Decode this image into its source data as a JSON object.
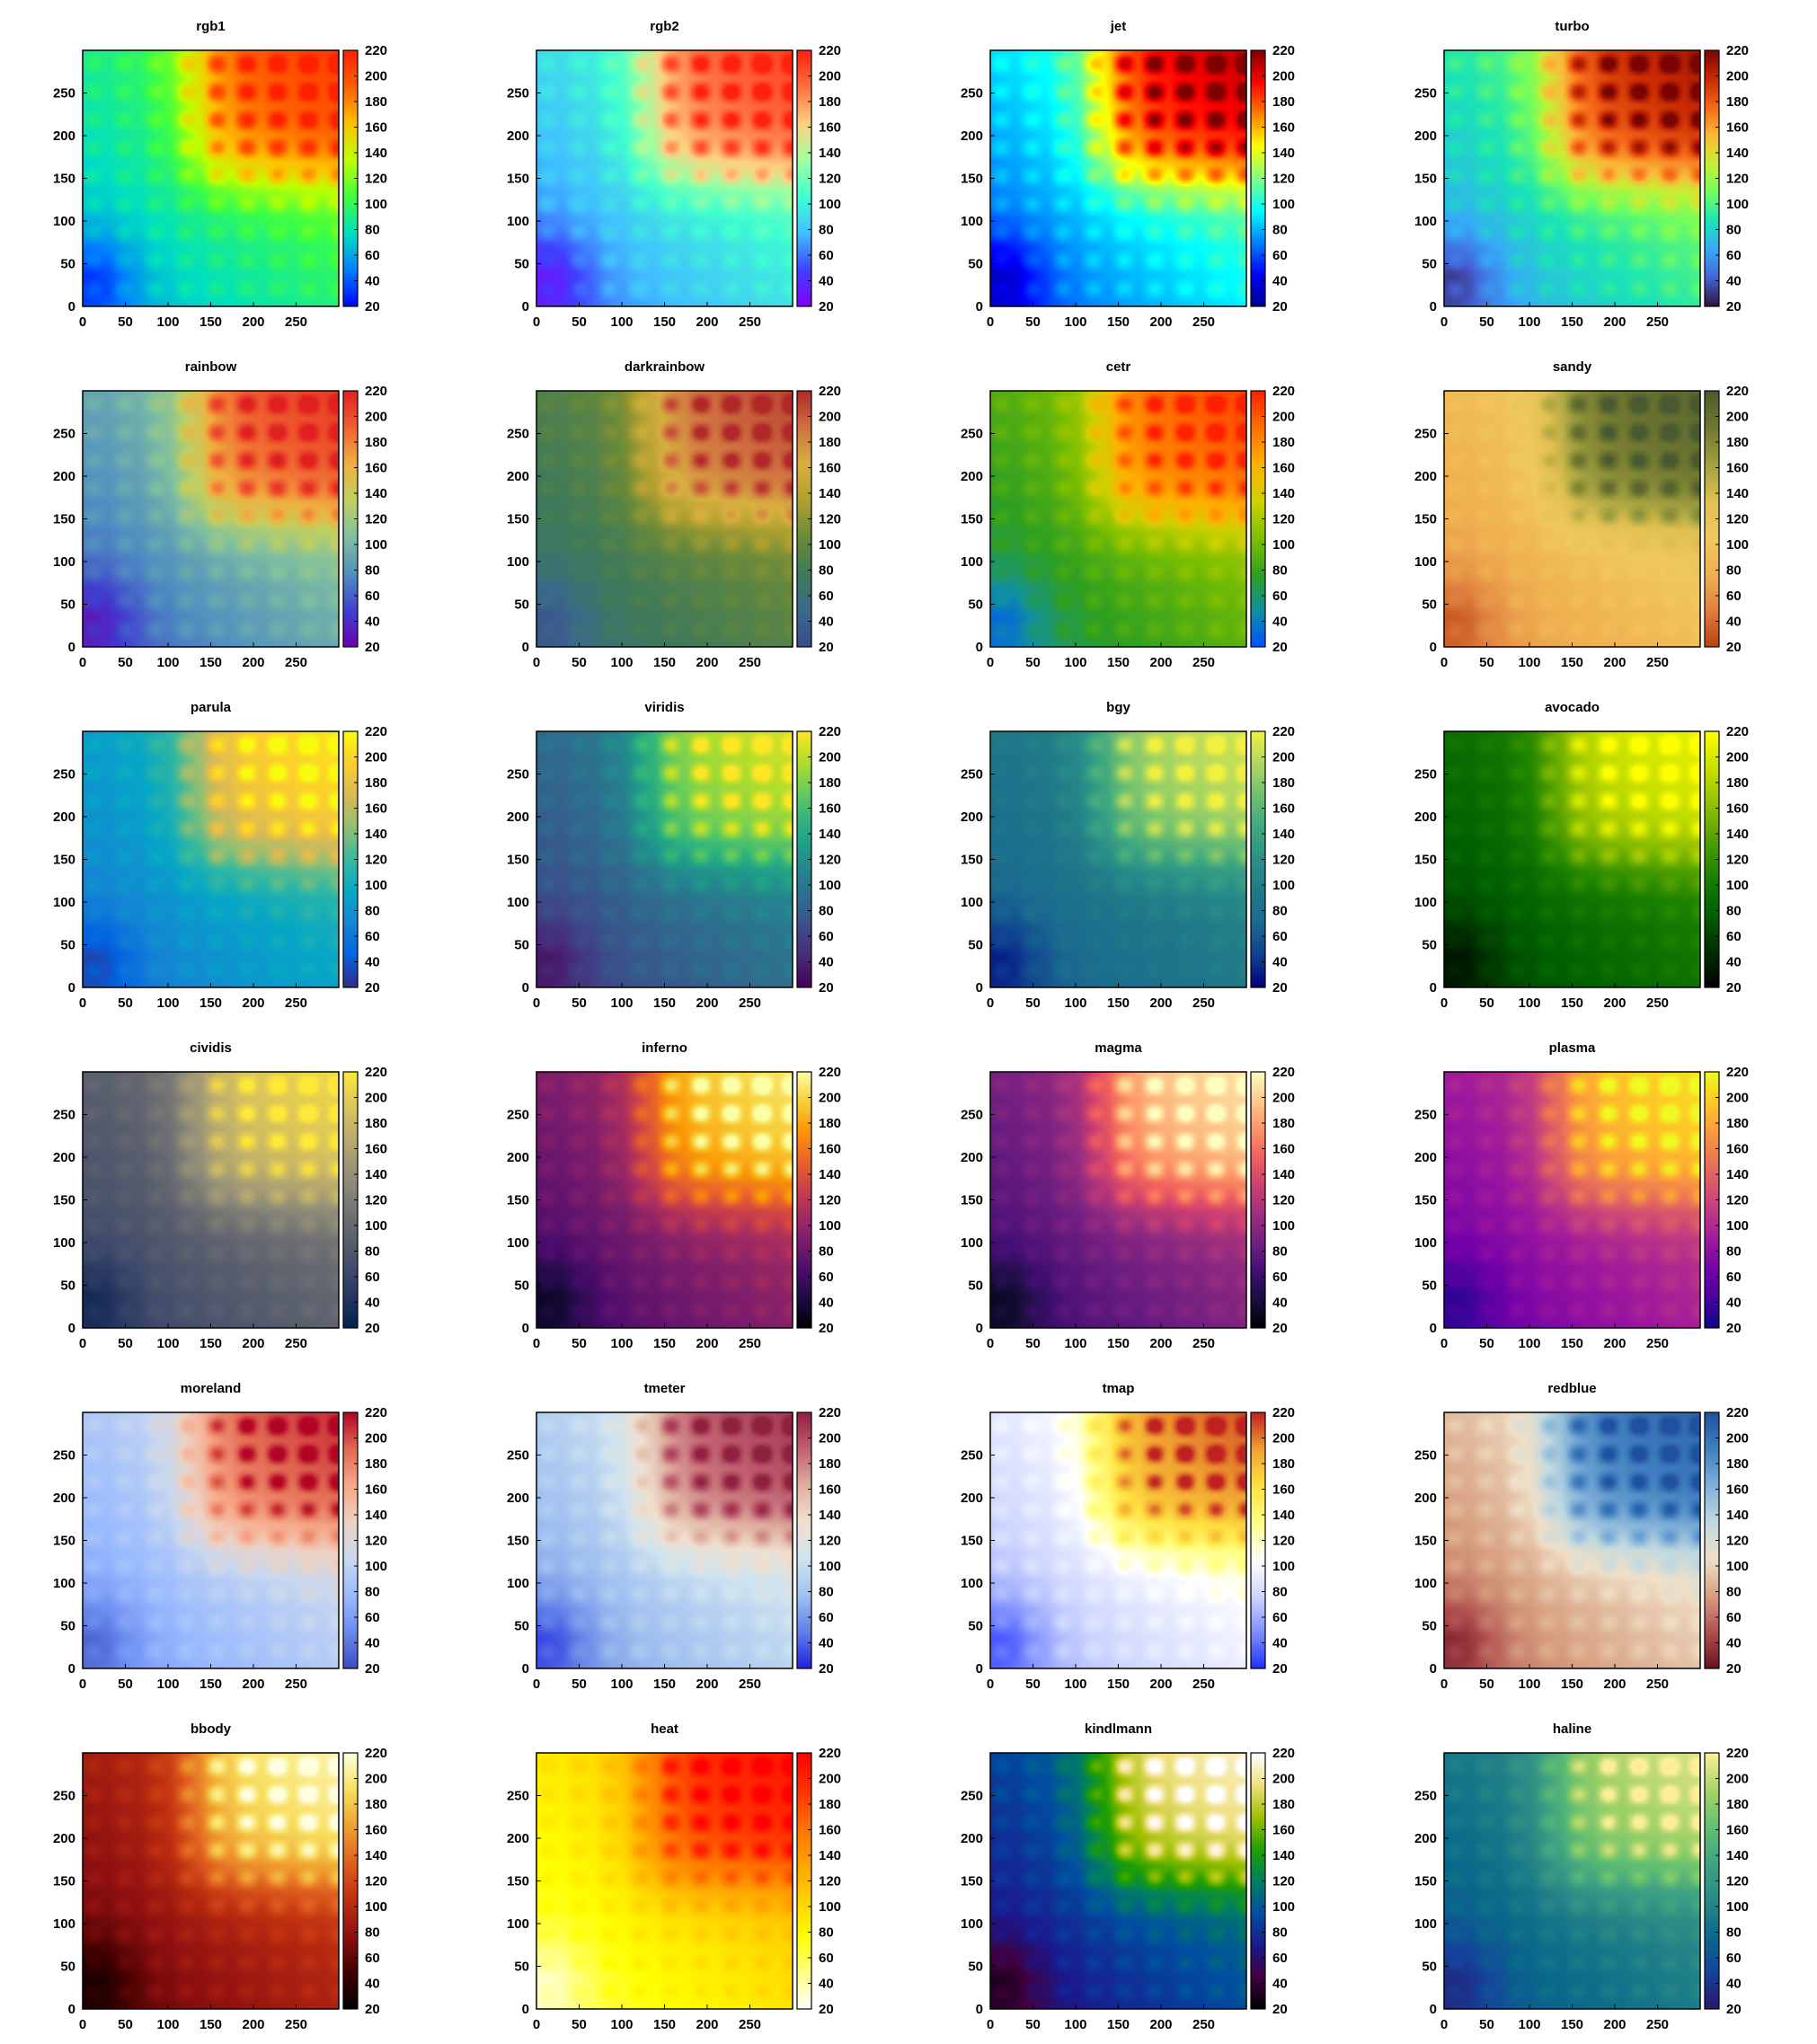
{
  "chart_data": {
    "type": "heatmap",
    "grid": {
      "columns": 4,
      "rows": 6
    },
    "x_ticks": [
      "0",
      "50",
      "100",
      "150",
      "200",
      "250"
    ],
    "y_ticks": [
      "0",
      "50",
      "100",
      "150",
      "200",
      "250"
    ],
    "colorbar_ticks": [
      "20",
      "40",
      "60",
      "80",
      "100",
      "120",
      "140",
      "160",
      "180",
      "200",
      "220"
    ],
    "xlim": [
      0,
      300
    ],
    "ylim": [
      0,
      300
    ],
    "zlim": [
      20,
      220
    ],
    "panels": [
      {
        "title": "rgb1",
        "colormap": [
          "#0000ff",
          "#0080ff",
          "#00e0c0",
          "#40ff40",
          "#c0ff00",
          "#ffc000",
          "#ff6000",
          "#ff2000"
        ]
      },
      {
        "title": "rgb2",
        "colormap": [
          "#8000ff",
          "#4040ff",
          "#40c0ff",
          "#40ffd0",
          "#a0ffa0",
          "#ffd080",
          "#ff7040",
          "#ff2010"
        ]
      },
      {
        "title": "jet",
        "colormap": [
          "#00008f",
          "#0000ff",
          "#0080ff",
          "#00ffff",
          "#80ff80",
          "#ffff00",
          "#ff8000",
          "#ff0000",
          "#800000"
        ]
      },
      {
        "title": "turbo",
        "colormap": [
          "#30123b",
          "#4662d7",
          "#36aaf9",
          "#1ae4b6",
          "#72fe5e",
          "#c7ef34",
          "#fbb938",
          "#f56918",
          "#c92903",
          "#7a0403"
        ]
      },
      {
        "title": "rainbow",
        "colormap": [
          "#6a00b0",
          "#4040d0",
          "#5090c0",
          "#80c0a0",
          "#c0d060",
          "#f0b040",
          "#f06030",
          "#e02020"
        ]
      },
      {
        "title": "darkrainbow",
        "colormap": [
          "#3c4a8c",
          "#3a6a8a",
          "#3e7a5a",
          "#6a8a3a",
          "#b0a030",
          "#d8b040",
          "#d07040",
          "#b02828"
        ]
      },
      {
        "title": "cetr",
        "colormap": [
          "#0050ff",
          "#1090a0",
          "#30a020",
          "#80c000",
          "#d0d000",
          "#ffb000",
          "#ff7000",
          "#ff2000"
        ]
      },
      {
        "title": "sandy",
        "colormap": [
          "#b84010",
          "#e08040",
          "#f0b050",
          "#f0c860",
          "#e0c050",
          "#a0a040",
          "#707830",
          "#4a5a30"
        ]
      },
      {
        "title": "parula",
        "colormap": [
          "#352a87",
          "#0363e1",
          "#1485d4",
          "#06a7c6",
          "#38b99e",
          "#92bf73",
          "#d9ba56",
          "#fcce2e",
          "#f9fb0e"
        ]
      },
      {
        "title": "viridis",
        "colormap": [
          "#440154",
          "#482878",
          "#3e4989",
          "#31688e",
          "#26828e",
          "#1f9e89",
          "#35b779",
          "#6ece58",
          "#b5de2b",
          "#fde725"
        ]
      },
      {
        "title": "bgy",
        "colormap": [
          "#000080",
          "#104090",
          "#1a6a90",
          "#207a88",
          "#2a9088",
          "#40a880",
          "#70c070",
          "#b0d860",
          "#f0f040"
        ]
      },
      {
        "title": "avocado",
        "colormap": [
          "#000000",
          "#003000",
          "#006000",
          "#1a8000",
          "#50a000",
          "#90c000",
          "#c8e000",
          "#ffff00"
        ]
      },
      {
        "title": "cividis",
        "colormap": [
          "#00224e",
          "#23345f",
          "#3e4a6c",
          "#575d6d",
          "#707173",
          "#8b8978",
          "#a69d75",
          "#c3b369",
          "#e1cb56",
          "#fee838"
        ]
      },
      {
        "title": "inferno",
        "colormap": [
          "#000004",
          "#1b0c41",
          "#4a0c6b",
          "#781c6d",
          "#a52c60",
          "#cf4446",
          "#ed6925",
          "#fb9b06",
          "#f7d13d",
          "#fcffa4"
        ]
      },
      {
        "title": "magma",
        "colormap": [
          "#000004",
          "#180f3d",
          "#440f76",
          "#721f81",
          "#9e2f7f",
          "#cd4071",
          "#f1605d",
          "#fd9668",
          "#feca8d",
          "#fcfdbf"
        ]
      },
      {
        "title": "plasma",
        "colormap": [
          "#0d0887",
          "#46039f",
          "#7201a8",
          "#9c179e",
          "#bd3786",
          "#d8576b",
          "#ed7953",
          "#fb9f3a",
          "#fdca26",
          "#f0f921"
        ]
      },
      {
        "title": "moreland",
        "colormap": [
          "#3b4cc0",
          "#6a8bef",
          "#9abbff",
          "#c9d8ef",
          "#edd1c2",
          "#f7a889",
          "#e26952",
          "#b40426"
        ]
      },
      {
        "title": "tmeter",
        "colormap": [
          "#2020e0",
          "#6080e8",
          "#a0c0f0",
          "#d0e4f0",
          "#f0e0d0",
          "#e0b0a0",
          "#c06070",
          "#902040"
        ]
      },
      {
        "title": "tmap",
        "colormap": [
          "#2030ff",
          "#8090ff",
          "#d0d8ff",
          "#ffffff",
          "#ffff80",
          "#ffe040",
          "#f0a030",
          "#c02020"
        ]
      },
      {
        "title": "redblue",
        "colormap": [
          "#6a1020",
          "#b05050",
          "#d8a080",
          "#f0e0c8",
          "#c0d8e0",
          "#80b0d8",
          "#4080c0",
          "#2050a0"
        ]
      },
      {
        "title": "bbody",
        "colormap": [
          "#000000",
          "#400000",
          "#901010",
          "#c03010",
          "#e06020",
          "#f0a030",
          "#f8e060",
          "#ffffe0"
        ]
      },
      {
        "title": "heat",
        "colormap": [
          "#ffffff",
          "#ffff80",
          "#ffff00",
          "#ffd000",
          "#ffa000",
          "#ff7000",
          "#ff3000",
          "#ff0000"
        ]
      },
      {
        "title": "kindlmann",
        "colormap": [
          "#000000",
          "#400040",
          "#1a1a90",
          "#0050a0",
          "#008060",
          "#20a000",
          "#a0c000",
          "#f0e080",
          "#ffffff"
        ]
      },
      {
        "title": "haline",
        "colormap": [
          "#2a186c",
          "#14439c",
          "#0a6a8a",
          "#2a8a86",
          "#40a482",
          "#64c070",
          "#a8d468",
          "#fdef9a"
        ]
      }
    ]
  }
}
